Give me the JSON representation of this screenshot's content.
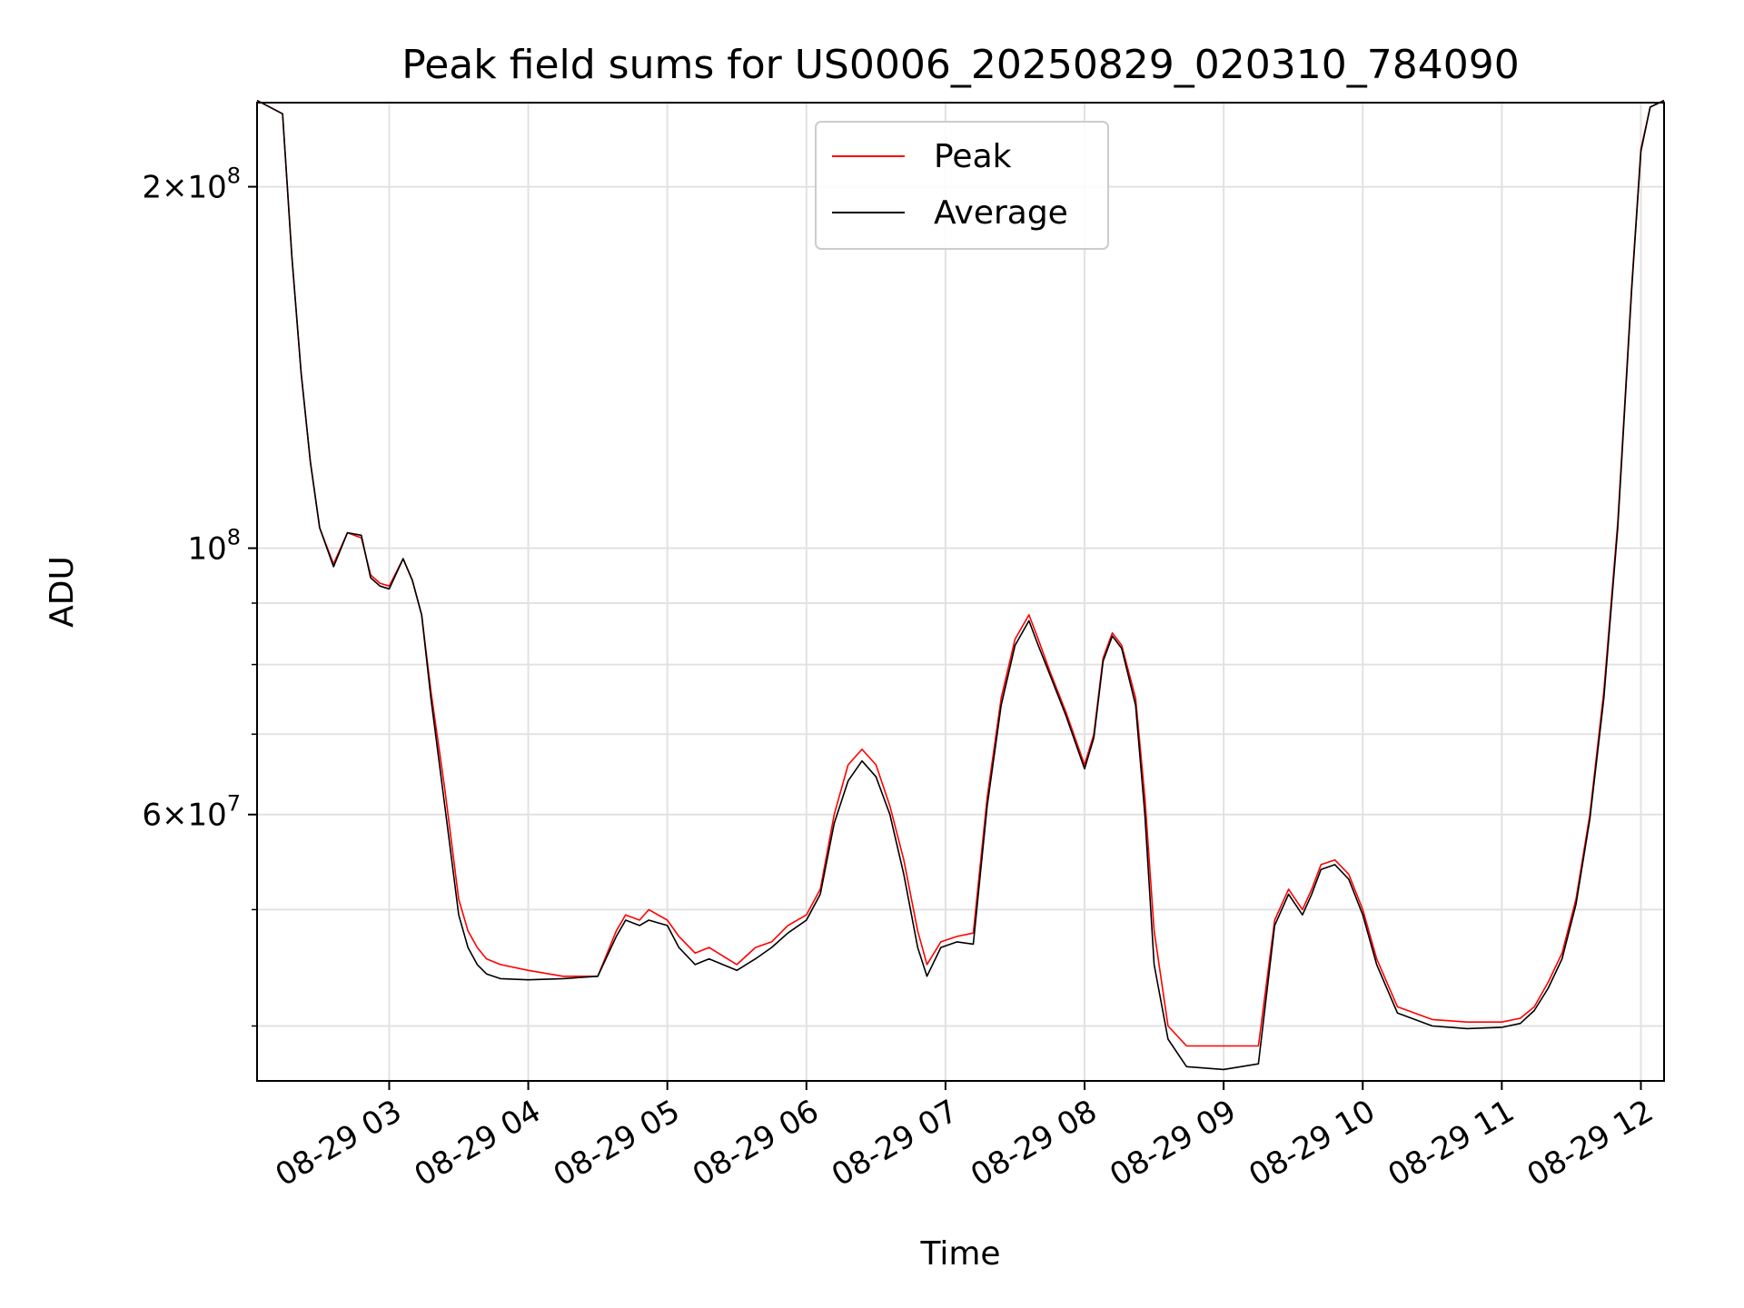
{
  "chart_data": {
    "type": "line",
    "title": "Peak field sums for US0006_20250829_020310_784090",
    "xlabel": "Time",
    "ylabel": "ADU",
    "yscale": "log",
    "grid": true,
    "legend_position": "top-center",
    "xlim": [
      "08-29 02:03",
      "08-29 12:10"
    ],
    "ylim": [
      36000000,
      235000000
    ],
    "x_ticks": [
      "08-29 03",
      "08-29 04",
      "08-29 05",
      "08-29 06",
      "08-29 07",
      "08-29 08",
      "08-29 09",
      "08-29 10",
      "08-29 11",
      "08-29 12"
    ],
    "y_ticks": [
      {
        "value": 200000000,
        "mantissa": "2",
        "exp": "8"
      },
      {
        "value": 100000000,
        "mantissa": "",
        "exp": "8"
      },
      {
        "value": 60000000,
        "mantissa": "6",
        "exp": "7"
      }
    ],
    "x": [
      "08-29 02:03",
      "08-29 02:14",
      "08-29 02:18",
      "08-29 02:22",
      "08-29 02:26",
      "08-29 02:30",
      "08-29 02:36",
      "08-29 02:42",
      "08-29 02:48",
      "08-29 02:52",
      "08-29 02:56",
      "08-29 03:00",
      "08-29 03:06",
      "08-29 03:10",
      "08-29 03:14",
      "08-29 03:18",
      "08-29 03:24",
      "08-29 03:30",
      "08-29 03:34",
      "08-29 03:38",
      "08-29 03:42",
      "08-29 03:48",
      "08-29 04:00",
      "08-29 04:15",
      "08-29 04:30",
      "08-29 04:38",
      "08-29 04:42",
      "08-29 04:48",
      "08-29 04:52",
      "08-29 05:00",
      "08-29 05:05",
      "08-29 05:12",
      "08-29 05:18",
      "08-29 05:30",
      "08-29 05:38",
      "08-29 05:45",
      "08-29 05:52",
      "08-29 06:00",
      "08-29 06:06",
      "08-29 06:12",
      "08-29 06:18",
      "08-29 06:24",
      "08-29 06:30",
      "08-29 06:36",
      "08-29 06:42",
      "08-29 06:48",
      "08-29 06:52",
      "08-29 06:58",
      "08-29 07:05",
      "08-29 07:12",
      "08-29 07:18",
      "08-29 07:24",
      "08-29 07:30",
      "08-29 07:36",
      "08-29 07:40",
      "08-29 07:45",
      "08-29 07:52",
      "08-29 08:00",
      "08-29 08:04",
      "08-29 08:08",
      "08-29 08:12",
      "08-29 08:16",
      "08-29 08:22",
      "08-29 08:26",
      "08-29 08:30",
      "08-29 08:36",
      "08-29 08:44",
      "08-29 09:00",
      "08-29 09:15",
      "08-29 09:22",
      "08-29 09:28",
      "08-29 09:34",
      "08-29 09:38",
      "08-29 09:42",
      "08-29 09:48",
      "08-29 09:54",
      "08-29 10:00",
      "08-29 10:06",
      "08-29 10:15",
      "08-29 10:30",
      "08-29 10:45",
      "08-29 11:00",
      "08-29 11:08",
      "08-29 11:14",
      "08-29 11:20",
      "08-29 11:26",
      "08-29 11:32",
      "08-29 11:38",
      "08-29 11:44",
      "08-29 11:50",
      "08-29 11:56",
      "08-29 12:00",
      "08-29 12:04",
      "08-29 12:10"
    ],
    "series": [
      {
        "name": "Peak",
        "color": "#ff0000",
        "values": [
          236000000,
          230000000,
          175000000,
          140000000,
          118000000,
          104000000,
          97000000,
          103000000,
          102000000,
          95000000,
          93500000,
          93000000,
          98000000,
          94000000,
          88000000,
          76000000,
          63000000,
          51000000,
          48000000,
          46500000,
          45500000,
          45000000,
          44500000,
          44000000,
          44000000,
          48000000,
          49500000,
          49000000,
          50000000,
          49000000,
          47500000,
          46000000,
          46500000,
          45000000,
          46500000,
          47000000,
          48500000,
          49500000,
          52000000,
          60000000,
          66000000,
          68000000,
          66000000,
          61000000,
          55000000,
          48000000,
          45000000,
          47000000,
          47500000,
          47800000,
          62000000,
          75000000,
          84000000,
          88000000,
          84000000,
          79000000,
          73000000,
          66000000,
          70000000,
          81000000,
          85000000,
          83000000,
          75000000,
          62000000,
          48000000,
          40000000,
          38500000,
          38500000,
          38500000,
          49000000,
          52000000,
          50000000,
          52000000,
          54500000,
          55000000,
          53500000,
          50000000,
          45500000,
          41500000,
          40500000,
          40300000,
          40300000,
          40600000,
          41500000,
          43500000,
          46000000,
          51000000,
          60000000,
          76000000,
          105000000,
          165000000,
          215000000,
          233000000,
          236000000
        ]
      },
      {
        "name": "Average",
        "color": "#000000",
        "values": [
          236000000,
          230000000,
          175000000,
          140000000,
          118000000,
          104000000,
          96500000,
          103000000,
          102500000,
          94500000,
          93000000,
          92500000,
          98000000,
          94000000,
          88000000,
          75000000,
          61000000,
          49500000,
          46500000,
          45000000,
          44200000,
          43800000,
          43700000,
          43800000,
          44000000,
          47500000,
          49000000,
          48500000,
          49000000,
          48500000,
          46500000,
          45000000,
          45500000,
          44500000,
          45500000,
          46500000,
          47800000,
          49000000,
          51500000,
          59000000,
          64000000,
          66500000,
          64500000,
          60000000,
          53500000,
          46500000,
          44000000,
          46500000,
          47000000,
          46800000,
          61000000,
          74000000,
          83000000,
          87000000,
          83000000,
          78500000,
          72500000,
          65500000,
          69500000,
          80500000,
          84500000,
          82500000,
          74000000,
          60000000,
          45000000,
          39000000,
          37000000,
          36800000,
          37200000,
          48500000,
          51500000,
          49500000,
          51500000,
          54000000,
          54500000,
          53000000,
          49500000,
          45000000,
          41000000,
          40000000,
          39800000,
          39900000,
          40200000,
          41200000,
          43000000,
          45500000,
          50500000,
          59500000,
          75000000,
          104000000,
          164000000,
          214000000,
          233000000,
          236000000
        ]
      }
    ]
  }
}
